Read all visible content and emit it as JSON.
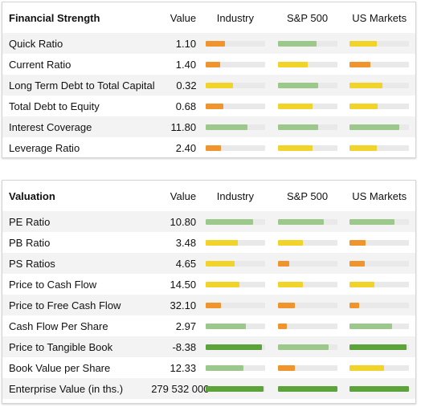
{
  "financial_strength": {
    "title": "Financial Strength",
    "headers": [
      "Value",
      "Industry",
      "S&P 500",
      "US Markets"
    ],
    "rows": [
      {
        "label": "Quick Ratio",
        "value": "1.10",
        "bars": [
          {
            "level": 0.32,
            "color": "orange"
          },
          {
            "level": 0.65,
            "color": "lgreen"
          },
          {
            "level": 0.46,
            "color": "yellow"
          }
        ]
      },
      {
        "label": "Current Ratio",
        "value": "1.40",
        "bars": [
          {
            "level": 0.25,
            "color": "orange"
          },
          {
            "level": 0.51,
            "color": "yellow"
          },
          {
            "level": 0.35,
            "color": "orange"
          }
        ]
      },
      {
        "label": "Long Term Debt to Total Capital",
        "value": "0.32",
        "bars": [
          {
            "level": 0.46,
            "color": "yellow"
          },
          {
            "level": 0.68,
            "color": "lgreen"
          },
          {
            "level": 0.55,
            "color": "yellow"
          }
        ]
      },
      {
        "label": "Total Debt to Equity",
        "value": "0.68",
        "bars": [
          {
            "level": 0.3,
            "color": "orange"
          },
          {
            "level": 0.59,
            "color": "yellow"
          },
          {
            "level": 0.47,
            "color": "yellow"
          }
        ]
      },
      {
        "label": "Interest Coverage",
        "value": "11.80",
        "bars": [
          {
            "level": 0.7,
            "color": "lgreen"
          },
          {
            "level": 0.68,
            "color": "lgreen"
          },
          {
            "level": 0.83,
            "color": "lgreen"
          }
        ]
      },
      {
        "label": "Leverage Ratio",
        "value": "2.40",
        "bars": [
          {
            "level": 0.26,
            "color": "orange"
          },
          {
            "level": 0.59,
            "color": "yellow"
          },
          {
            "level": 0.46,
            "color": "yellow"
          }
        ]
      }
    ]
  },
  "valuation": {
    "title": "Valuation",
    "headers": [
      "Value",
      "Industry",
      "S&P 500",
      "US Markets"
    ],
    "rows": [
      {
        "label": "PE Ratio",
        "value": "10.80",
        "bars": [
          {
            "level": 0.8,
            "color": "lgreen"
          },
          {
            "level": 0.78,
            "color": "lgreen"
          },
          {
            "level": 0.75,
            "color": "lgreen"
          }
        ]
      },
      {
        "label": "PB Ratio",
        "value": "3.48",
        "bars": [
          {
            "level": 0.54,
            "color": "yellow"
          },
          {
            "level": 0.42,
            "color": "yellow"
          },
          {
            "level": 0.27,
            "color": "orange"
          }
        ]
      },
      {
        "label": "PS Ratios",
        "value": "4.65",
        "bars": [
          {
            "level": 0.49,
            "color": "yellow"
          },
          {
            "level": 0.2,
            "color": "orange"
          },
          {
            "level": 0.25,
            "color": "orange"
          }
        ]
      },
      {
        "label": "Price to Cash Flow",
        "value": "14.50",
        "bars": [
          {
            "level": 0.57,
            "color": "yellow"
          },
          {
            "level": 0.42,
            "color": "yellow"
          },
          {
            "level": 0.41,
            "color": "yellow"
          }
        ]
      },
      {
        "label": "Price to Free Cash Flow",
        "value": "32.10",
        "bars": [
          {
            "level": 0.26,
            "color": "orange"
          },
          {
            "level": 0.29,
            "color": "orange"
          },
          {
            "level": 0.16,
            "color": "orange"
          }
        ]
      },
      {
        "label": "Cash Flow Per Share",
        "value": "2.97",
        "bars": [
          {
            "level": 0.68,
            "color": "lgreen"
          },
          {
            "level": 0.16,
            "color": "orange"
          },
          {
            "level": 0.72,
            "color": "lgreen"
          }
        ]
      },
      {
        "label": "Price to Tangible Book",
        "value": "-8.38",
        "bars": [
          {
            "level": 0.95,
            "color": "dgreen"
          },
          {
            "level": 0.86,
            "color": "lgreen"
          },
          {
            "level": 0.96,
            "color": "dgreen"
          }
        ]
      },
      {
        "label": "Book Value per Share",
        "value": "12.33",
        "bars": [
          {
            "level": 0.64,
            "color": "lgreen"
          },
          {
            "level": 0.29,
            "color": "orange"
          },
          {
            "level": 0.58,
            "color": "yellow"
          }
        ]
      },
      {
        "label": "Enterprise Value (in ths.)",
        "value": "279 532 000",
        "bars": [
          {
            "level": 0.97,
            "color": "dgreen"
          },
          {
            "level": 1.0,
            "color": "dgreen"
          },
          {
            "level": 1.0,
            "color": "dgreen"
          }
        ]
      }
    ]
  },
  "colors": {
    "orange": "#f0952e",
    "yellow": "#f1d32a",
    "lgreen": "#9cc98b",
    "dgreen": "#5ca33a",
    "track": "#e9e9e9",
    "stripe": "#f3f3f3"
  }
}
